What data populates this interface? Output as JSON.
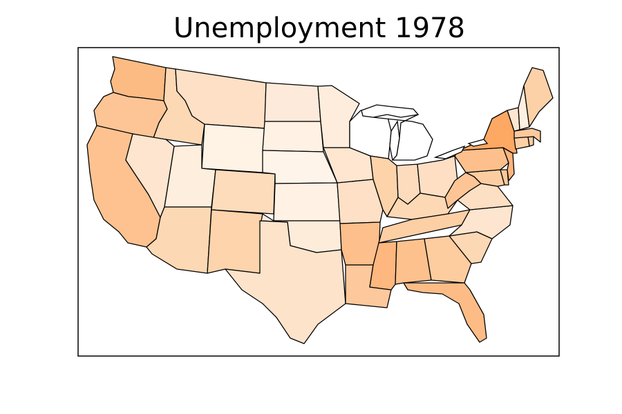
{
  "chart_data": {
    "type": "choropleth",
    "title": "Unemployment 1978",
    "region_type": "US states (contiguous)",
    "legend": "none",
    "colormap": "Oranges",
    "no_data_color": "#ffffff",
    "regions": [
      {
        "name": "Washington",
        "level": 0.45,
        "color": "#fdbb84"
      },
      {
        "name": "Oregon",
        "level": 0.36,
        "color": "#fdc596"
      },
      {
        "name": "California",
        "level": 0.4,
        "color": "#fdc28f"
      },
      {
        "name": "Idaho",
        "level": 0.25,
        "color": "#fdd8b4"
      },
      {
        "name": "Nevada",
        "level": 0.15,
        "color": "#fee5cf"
      },
      {
        "name": "Montana",
        "level": 0.2,
        "color": "#fde0c5"
      },
      {
        "name": "Wyoming",
        "level": 0.05,
        "color": "#fff3e6"
      },
      {
        "name": "Utah",
        "level": 0.1,
        "color": "#feeedd"
      },
      {
        "name": "Arizona",
        "level": 0.25,
        "color": "#fdd8b4"
      },
      {
        "name": "Colorado",
        "level": 0.2,
        "color": "#fddcbc"
      },
      {
        "name": "New Mexico",
        "level": 0.27,
        "color": "#fdd4ac"
      },
      {
        "name": "North Dakota",
        "level": 0.12,
        "color": "#feeadb"
      },
      {
        "name": "South Dakota",
        "level": 0.06,
        "color": "#fff1e3"
      },
      {
        "name": "Nebraska",
        "level": 0.03,
        "color": "#fff4ea"
      },
      {
        "name": "Kansas",
        "level": 0.05,
        "color": "#fff1e4"
      },
      {
        "name": "Oklahoma",
        "level": 0.1,
        "color": "#feecdb"
      },
      {
        "name": "Texas",
        "level": 0.18,
        "color": "#fee3cb"
      },
      {
        "name": "Minnesota",
        "level": 0.1,
        "color": "#feeddc"
      },
      {
        "name": "Iowa",
        "level": 0.15,
        "color": "#fee6d0"
      },
      {
        "name": "Missouri",
        "level": 0.2,
        "color": "#fde0c5"
      },
      {
        "name": "Arkansas",
        "level": 0.42,
        "color": "#fdbf8b"
      },
      {
        "name": "Louisiana",
        "level": 0.35,
        "color": "#fdc89c"
      },
      {
        "name": "Wisconsin",
        "level": null,
        "color": "#ffffff"
      },
      {
        "name": "Michigan",
        "level": null,
        "color": "#ffffff"
      },
      {
        "name": "Illinois",
        "level": 0.27,
        "color": "#fdd3aa"
      },
      {
        "name": "Indiana",
        "level": 0.2,
        "color": "#fddcbd"
      },
      {
        "name": "Ohio",
        "level": 0.18,
        "color": "#fedfc4"
      },
      {
        "name": "Kentucky",
        "level": 0.25,
        "color": "#fdd8b4"
      },
      {
        "name": "Tennessee",
        "level": 0.3,
        "color": "#fdcfa4"
      },
      {
        "name": "Mississippi",
        "level": 0.5,
        "color": "#fdb77f"
      },
      {
        "name": "Alabama",
        "level": 0.42,
        "color": "#fdc18d"
      },
      {
        "name": "Georgia",
        "level": 0.33,
        "color": "#fdcc9f"
      },
      {
        "name": "Florida",
        "level": 0.45,
        "color": "#fdbc86"
      },
      {
        "name": "South Carolina",
        "level": 0.25,
        "color": "#fdd8b4"
      },
      {
        "name": "North Carolina",
        "level": 0.15,
        "color": "#fee5cf"
      },
      {
        "name": "Virginia",
        "level": 0.2,
        "color": "#fddfc3"
      },
      {
        "name": "West Virginia",
        "level": 0.38,
        "color": "#fdc596"
      },
      {
        "name": "Maryland",
        "level": 0.32,
        "color": "#fdcda2"
      },
      {
        "name": "Delaware",
        "level": 0.36,
        "color": "#fdc898"
      },
      {
        "name": "Pennsylvania",
        "level": 0.4,
        "color": "#fdc08c"
      },
      {
        "name": "New Jersey",
        "level": 0.5,
        "color": "#fdb47d"
      },
      {
        "name": "New York",
        "level": 0.58,
        "color": "#fda863"
      },
      {
        "name": "Connecticut",
        "level": 0.3,
        "color": "#fdd0a6"
      },
      {
        "name": "Rhode Island",
        "level": 0.35,
        "color": "#fdca9d"
      },
      {
        "name": "Massachusetts",
        "level": 0.35,
        "color": "#fdc99c"
      },
      {
        "name": "Vermont",
        "level": 0.15,
        "color": "#fee6d0"
      },
      {
        "name": "New Hampshire",
        "level": 0.08,
        "color": "#feefe0"
      },
      {
        "name": "Maine",
        "level": 0.3,
        "color": "#fdd1a7"
      }
    ]
  }
}
